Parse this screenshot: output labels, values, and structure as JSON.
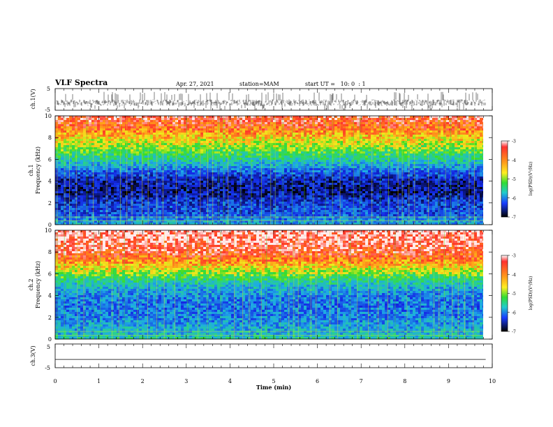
{
  "header": {
    "title": "VLF Spectra",
    "date": "Apr. 27, 2021",
    "station": "station=MAM",
    "start": "start UT =   10: 0  : 1"
  },
  "chart_data": [
    {
      "type": "line",
      "panel": "ch1-waveform",
      "ylabel": "ch.1(V)",
      "ylim": [
        -5,
        5
      ],
      "yticks": [
        "5",
        "-5"
      ],
      "xlim": [
        0,
        10
      ],
      "description_values": {
        "mean": -1.5,
        "min": -5,
        "max": 3.5
      },
      "colors": {
        "trace": "#000000"
      }
    },
    {
      "type": "heatmap",
      "panel": "ch1-spectrogram",
      "ylabel_line1": "ch.1",
      "ylabel_line2": "Frequency (kHz)",
      "ylim": [
        0,
        10
      ],
      "yticks": [
        "0",
        "2",
        "4",
        "6",
        "8",
        "10"
      ],
      "xlim": [
        0,
        10
      ],
      "data_end_min": 9.85,
      "colorbar": {
        "label": "log(PSD)(V²/Hz)",
        "range": [
          -7,
          -3
        ],
        "ticks": [
          "-3",
          "-4",
          "-5",
          "-6",
          "-7"
        ]
      },
      "psd_profile": {
        "freq_khz": [
          0,
          0.5,
          1,
          2,
          3,
          4,
          5,
          6,
          7,
          8,
          9,
          10
        ],
        "log_psd": [
          -5.6,
          -5.8,
          -6.1,
          -6.2,
          -6.6,
          -6.5,
          -5.9,
          -5.2,
          -4.6,
          -4.1,
          -3.6,
          -3.3
        ]
      }
    },
    {
      "type": "heatmap",
      "panel": "ch2-spectrogram",
      "ylabel_line1": "ch.2",
      "ylabel_line2": "Frequency (kHz)",
      "ylim": [
        0,
        10
      ],
      "yticks": [
        "0",
        "2",
        "4",
        "6",
        "8",
        "10"
      ],
      "xlim": [
        0,
        10
      ],
      "data_end_min": 9.85,
      "colorbar": {
        "label": "log(PSD)(V²/Hz)",
        "range": [
          -7,
          -3
        ],
        "ticks": [
          "-3",
          "-4",
          "-5",
          "-6",
          "-7"
        ]
      },
      "psd_profile": {
        "freq_khz": [
          0,
          0.5,
          1,
          2,
          3,
          4,
          5,
          6,
          7,
          8,
          9,
          10
        ],
        "log_psd": [
          -5.2,
          -5.5,
          -5.6,
          -5.8,
          -5.9,
          -5.8,
          -5.4,
          -4.6,
          -3.9,
          -3.4,
          -3.2,
          -3.1
        ]
      }
    },
    {
      "type": "line",
      "panel": "ch3-waveform",
      "ylabel": "ch.3(V)",
      "ylim": [
        -5,
        5
      ],
      "yticks": [
        "5",
        "-5"
      ],
      "xlim": [
        0,
        10
      ],
      "xticks": [
        "0",
        "1",
        "2",
        "3",
        "4",
        "5",
        "6",
        "7",
        "8",
        "9",
        "10"
      ],
      "xlabel": "Time (min)",
      "values": {
        "x": [
          0,
          9.85
        ],
        "y": [
          -1.5,
          -1.5
        ]
      },
      "colors": {
        "trace": "#000000"
      }
    }
  ]
}
